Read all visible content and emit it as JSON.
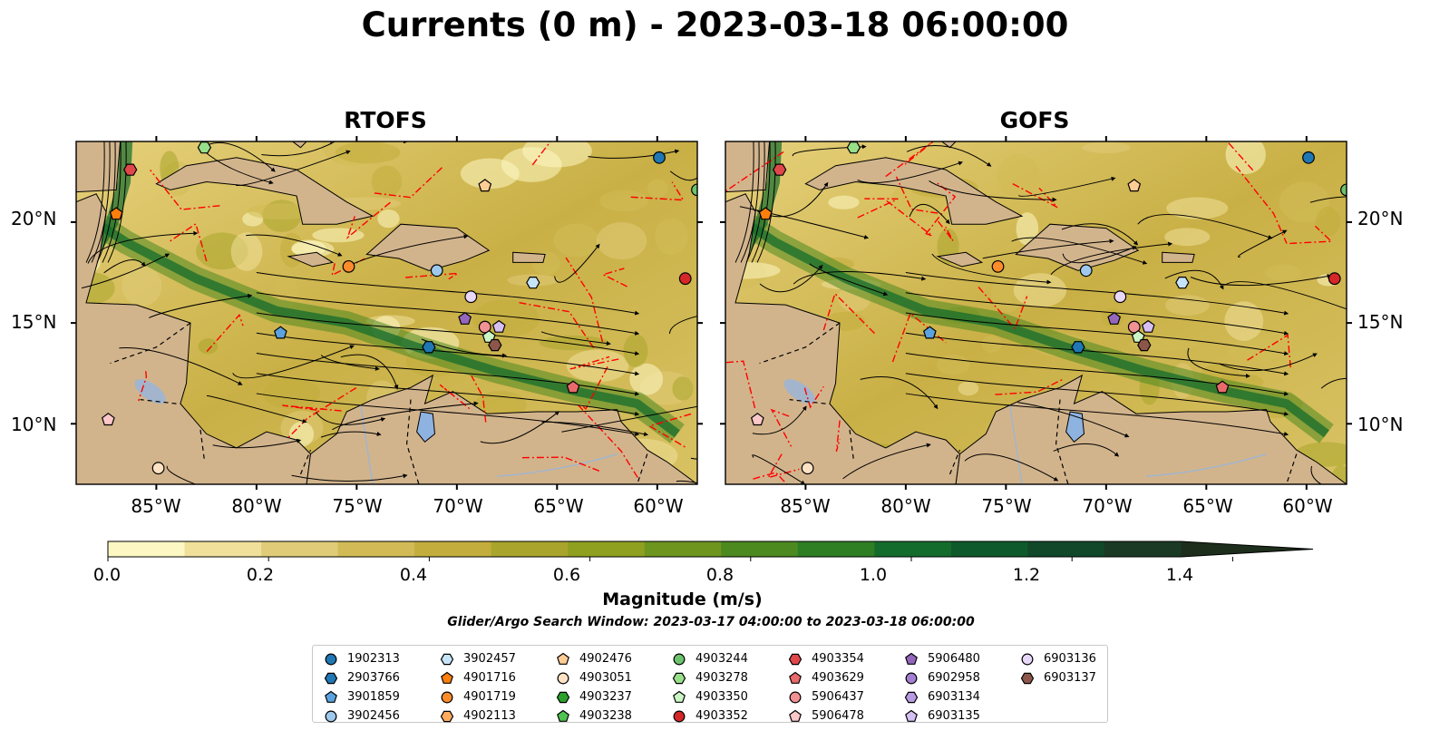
{
  "title": "Currents (0 m) - 2023-03-18 06:00:00",
  "panels": [
    {
      "title": "RTOFS"
    },
    {
      "title": "GOFS"
    }
  ],
  "axes": {
    "lat_ticks": [
      "20°N",
      "15°N",
      "10°N"
    ],
    "lon_ticks": [
      "85°W",
      "80°W",
      "75°W",
      "70°W",
      "65°W",
      "60°W"
    ]
  },
  "colorbar": {
    "label": "Magnitude (m/s)",
    "ticks": [
      "0.0",
      "0.2",
      "0.4",
      "0.6",
      "0.8",
      "1.0",
      "1.2",
      "1.4"
    ],
    "range": [
      0,
      1.5
    ],
    "extend": "max",
    "colors": [
      "#fdf7c3",
      "#f0e09a",
      "#e0cb78",
      "#d2bb56",
      "#c3ad3d",
      "#a9a52c",
      "#8fa020",
      "#6e951e",
      "#4c891f",
      "#2e7e24",
      "#146c2c",
      "#0f5a2b",
      "#114829",
      "#1b3a25",
      "#1d2e1c"
    ]
  },
  "search_window": "Glider/Argo Search Window: 2023-03-17 04:00:00 to 2023-03-18 06:00:00",
  "legend": [
    {
      "id": "1902313",
      "color": "#1f77b4",
      "marker": "circle"
    },
    {
      "id": "2903766",
      "color": "#1f77b4",
      "marker": "hexagon"
    },
    {
      "id": "3901859",
      "color": "#5ba3e0",
      "marker": "pentagon"
    },
    {
      "id": "3902456",
      "color": "#9ec9ec",
      "marker": "circle"
    },
    {
      "id": "3902457",
      "color": "#c6e4f8",
      "marker": "hexagon"
    },
    {
      "id": "4901716",
      "color": "#ff7f0e",
      "marker": "pentagon"
    },
    {
      "id": "4901719",
      "color": "#ff8c2a",
      "marker": "circle"
    },
    {
      "id": "4902113",
      "color": "#ffab5e",
      "marker": "hexagon"
    },
    {
      "id": "4902476",
      "color": "#ffcc95",
      "marker": "pentagon"
    },
    {
      "id": "4903051",
      "color": "#ffe2c4",
      "marker": "circle"
    },
    {
      "id": "4903237",
      "color": "#2ca02c",
      "marker": "hexagon"
    },
    {
      "id": "4903238",
      "color": "#4fc24f",
      "marker": "pentagon"
    },
    {
      "id": "4903244",
      "color": "#6cc46c",
      "marker": "circle"
    },
    {
      "id": "4903278",
      "color": "#98df8a",
      "marker": "hexagon"
    },
    {
      "id": "4903350",
      "color": "#ccf5c6",
      "marker": "pentagon"
    },
    {
      "id": "4903352",
      "color": "#d62728",
      "marker": "circle"
    },
    {
      "id": "4903354",
      "color": "#e0474a",
      "marker": "hexagon"
    },
    {
      "id": "4903629",
      "color": "#ea6a6c",
      "marker": "pentagon"
    },
    {
      "id": "5906437",
      "color": "#f29193",
      "marker": "circle"
    },
    {
      "id": "5906478",
      "color": "#fbc7c8",
      "marker": "pentagon"
    },
    {
      "id": "5906480",
      "color": "#9467bd",
      "marker": "pentagon"
    },
    {
      "id": "6902958",
      "color": "#a37fd1",
      "marker": "circle"
    },
    {
      "id": "6903134",
      "color": "#b89be0",
      "marker": "hexagon"
    },
    {
      "id": "6903135",
      "color": "#d6bff2",
      "marker": "pentagon"
    },
    {
      "id": "6903136",
      "color": "#ead8fa",
      "marker": "circle"
    },
    {
      "id": "6903137",
      "color": "#8c564b",
      "marker": "hexagon"
    }
  ],
  "map_extent": {
    "lon": [
      -89,
      -58
    ],
    "lat": [
      7,
      24
    ]
  },
  "floats_rtofs": [
    {
      "id": "1902313",
      "lon": -59.9,
      "lat": 23.2
    },
    {
      "id": "4903244",
      "lon": -58.0,
      "lat": 21.6
    },
    {
      "id": "4903278",
      "lon": -82.6,
      "lat": 23.7
    },
    {
      "id": "4903354",
      "lon": -86.3,
      "lat": 22.6
    },
    {
      "id": "4901716",
      "lon": -87.0,
      "lat": 20.4
    },
    {
      "id": "4902476",
      "lon": -68.6,
      "lat": 21.8
    },
    {
      "id": "4901719",
      "lon": -75.4,
      "lat": 17.8
    },
    {
      "id": "3902456",
      "lon": -71.0,
      "lat": 17.6
    },
    {
      "id": "3902457",
      "lon": -66.2,
      "lat": 17.0
    },
    {
      "id": "4903352",
      "lon": -58.6,
      "lat": 17.2
    },
    {
      "id": "6903136",
      "lon": -69.3,
      "lat": 16.3
    },
    {
      "id": "5906480",
      "lon": -69.6,
      "lat": 15.2
    },
    {
      "id": "2903766",
      "lon": -71.4,
      "lat": 13.8
    },
    {
      "id": "3901859",
      "lon": -78.8,
      "lat": 14.5
    },
    {
      "id": "5906437",
      "lon": -68.6,
      "lat": 14.8
    },
    {
      "id": "6903135",
      "lon": -67.9,
      "lat": 14.8
    },
    {
      "id": "4903350",
      "lon": -68.4,
      "lat": 14.3
    },
    {
      "id": "6903137",
      "lon": -68.1,
      "lat": 13.9
    },
    {
      "id": "4903629",
      "lon": -64.2,
      "lat": 11.8
    },
    {
      "id": "5906478",
      "lon": -87.4,
      "lat": 10.2
    },
    {
      "id": "4903051",
      "lon": -84.9,
      "lat": 7.8
    }
  ],
  "floats_gofs": [
    {
      "id": "1902313",
      "lon": -59.9,
      "lat": 23.2
    },
    {
      "id": "4903244",
      "lon": -58.0,
      "lat": 21.6
    },
    {
      "id": "4903278",
      "lon": -82.6,
      "lat": 23.7
    },
    {
      "id": "4903354",
      "lon": -86.3,
      "lat": 22.6
    },
    {
      "id": "4901716",
      "lon": -87.0,
      "lat": 20.4
    },
    {
      "id": "4902476",
      "lon": -68.6,
      "lat": 21.8
    },
    {
      "id": "4901719",
      "lon": -75.4,
      "lat": 17.8
    },
    {
      "id": "3902456",
      "lon": -71.0,
      "lat": 17.6
    },
    {
      "id": "3902457",
      "lon": -66.2,
      "lat": 17.0
    },
    {
      "id": "4903352",
      "lon": -58.6,
      "lat": 17.2
    },
    {
      "id": "6903136",
      "lon": -69.3,
      "lat": 16.3
    },
    {
      "id": "5906480",
      "lon": -69.6,
      "lat": 15.2
    },
    {
      "id": "2903766",
      "lon": -71.4,
      "lat": 13.8
    },
    {
      "id": "3901859",
      "lon": -78.8,
      "lat": 14.5
    },
    {
      "id": "5906437",
      "lon": -68.6,
      "lat": 14.8
    },
    {
      "id": "6903135",
      "lon": -67.9,
      "lat": 14.8
    },
    {
      "id": "4903350",
      "lon": -68.4,
      "lat": 14.3
    },
    {
      "id": "6903137",
      "lon": -68.1,
      "lat": 13.9
    },
    {
      "id": "4903629",
      "lon": -64.2,
      "lat": 11.8
    },
    {
      "id": "5906478",
      "lon": -87.4,
      "lat": 10.2
    },
    {
      "id": "4903051",
      "lon": -84.9,
      "lat": 7.8
    }
  ]
}
